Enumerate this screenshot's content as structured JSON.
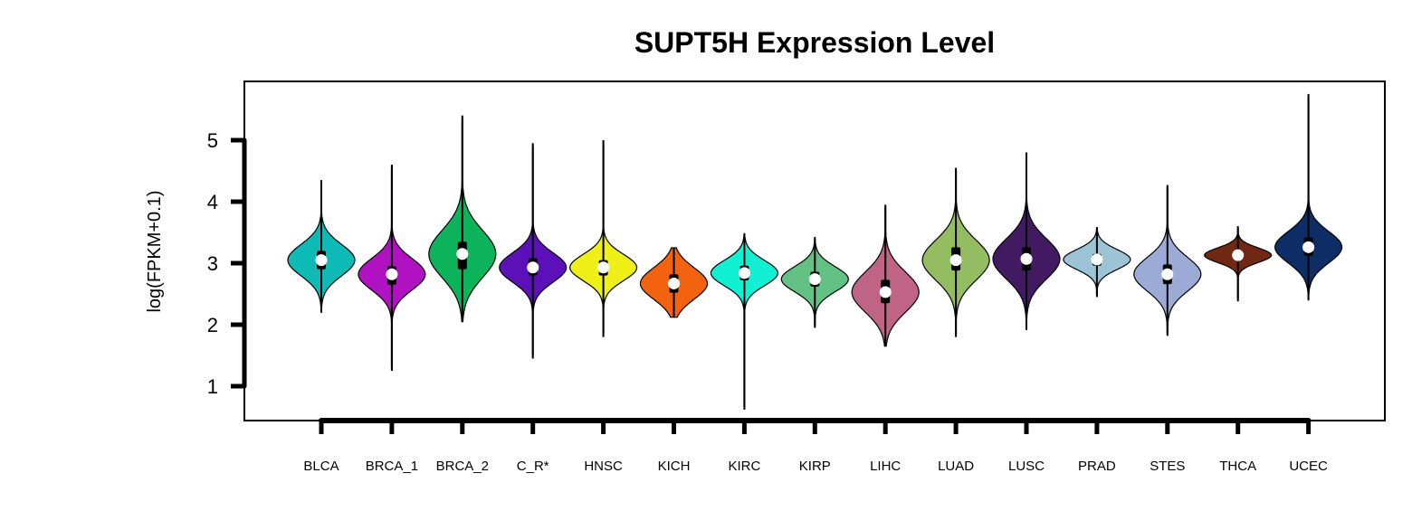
{
  "chart_data": {
    "type": "violin",
    "title": "SUPT5H Expression Level",
    "xlabel": "",
    "ylabel": "log(FPKM+0.1)",
    "yticks": [
      1,
      2,
      3,
      4,
      5
    ],
    "ylim": [
      0.4,
      5.95
    ],
    "grid": false,
    "legend": "none",
    "categories": [
      "BLCA",
      "BRCA_1",
      "BRCA_2",
      "C_R*",
      "HNSC",
      "KICH",
      "KIRC",
      "KIRP",
      "LIHC",
      "LUAD",
      "LUSC",
      "PRAD",
      "STES",
      "THCA",
      "UCEC"
    ],
    "colors": [
      "#0DBAB5",
      "#B012C2",
      "#0DB35A",
      "#5C11B8",
      "#F0F019",
      "#F2620F",
      "#12F0D4",
      "#63C283",
      "#C06485",
      "#94BD62",
      "#421A61",
      "#9CC3D6",
      "#9CAAD6",
      "#6E2813",
      "#0E2D66"
    ],
    "violins": [
      {
        "min": 2.2,
        "max": 4.35,
        "q1": 2.9,
        "median": 3.05,
        "q3": 3.2,
        "mean": 3.05
      },
      {
        "min": 1.25,
        "max": 4.6,
        "q1": 2.65,
        "median": 2.82,
        "q3": 2.95,
        "mean": 2.82
      },
      {
        "min": 2.05,
        "max": 5.4,
        "q1": 2.9,
        "median": 3.15,
        "q3": 3.35,
        "mean": 3.15
      },
      {
        "min": 1.45,
        "max": 4.95,
        "q1": 2.8,
        "median": 2.93,
        "q3": 3.08,
        "mean": 2.93
      },
      {
        "min": 1.8,
        "max": 5.0,
        "q1": 2.8,
        "median": 2.93,
        "q3": 3.05,
        "mean": 2.93
      },
      {
        "min": 2.12,
        "max": 3.25,
        "q1": 2.52,
        "median": 2.67,
        "q3": 2.82,
        "mean": 2.67
      },
      {
        "min": 0.62,
        "max": 3.48,
        "q1": 2.72,
        "median": 2.84,
        "q3": 2.96,
        "mean": 2.84
      },
      {
        "min": 1.95,
        "max": 3.42,
        "q1": 2.62,
        "median": 2.74,
        "q3": 2.86,
        "mean": 2.74
      },
      {
        "min": 1.65,
        "max": 3.95,
        "q1": 2.35,
        "median": 2.53,
        "q3": 2.73,
        "mean": 2.53
      },
      {
        "min": 1.8,
        "max": 4.55,
        "q1": 2.88,
        "median": 3.05,
        "q3": 3.26,
        "mean": 3.05
      },
      {
        "min": 1.92,
        "max": 4.8,
        "q1": 2.88,
        "median": 3.07,
        "q3": 3.26,
        "mean": 3.07
      },
      {
        "min": 2.45,
        "max": 3.58,
        "q1": 2.96,
        "median": 3.06,
        "q3": 3.15,
        "mean": 3.06
      },
      {
        "min": 1.82,
        "max": 4.27,
        "q1": 2.66,
        "median": 2.82,
        "q3": 2.98,
        "mean": 2.82
      },
      {
        "min": 2.38,
        "max": 3.6,
        "q1": 3.06,
        "median": 3.13,
        "q3": 3.2,
        "mean": 3.13
      },
      {
        "min": 2.4,
        "max": 5.75,
        "q1": 3.12,
        "median": 3.26,
        "q3": 3.42,
        "mean": 3.26
      }
    ]
  }
}
